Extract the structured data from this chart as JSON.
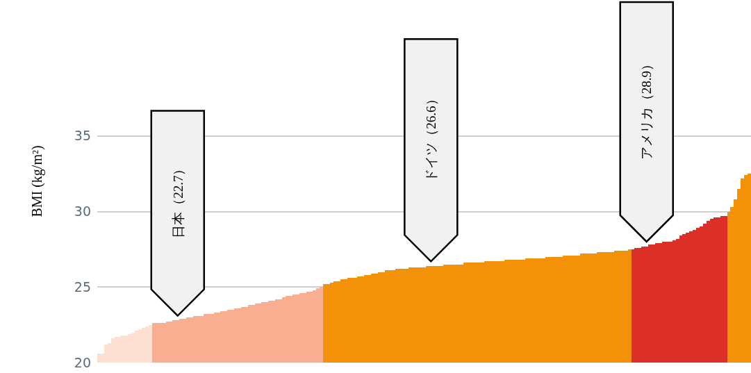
{
  "chart_data": {
    "type": "bar",
    "ylabel": "BMI (kg/m²)",
    "categories": [
      null,
      null,
      null,
      null,
      null,
      null,
      null,
      null,
      null,
      null,
      null,
      null,
      null,
      null,
      null,
      null,
      null,
      null,
      null,
      null,
      null,
      null,
      null,
      null,
      null,
      null,
      null,
      null,
      null,
      null,
      null,
      null,
      null,
      null,
      null,
      null,
      null,
      null,
      null,
      null,
      null,
      null,
      null,
      null,
      null,
      null,
      null,
      null,
      null,
      null,
      null,
      null,
      null,
      null,
      null,
      null,
      null,
      null,
      null,
      null,
      null,
      null,
      null,
      null,
      null,
      null,
      null,
      null,
      null,
      null,
      null,
      null,
      null,
      null,
      null,
      null,
      null,
      null,
      null,
      null,
      null,
      null,
      null,
      null,
      null,
      null,
      null,
      null,
      null,
      null,
      null,
      null,
      null,
      null,
      null,
      null,
      null,
      null,
      null,
      null,
      null,
      null,
      null,
      null,
      null,
      null,
      null,
      null,
      null,
      null,
      null,
      null,
      null,
      null,
      null,
      null,
      null,
      null,
      null,
      null,
      null,
      null,
      null,
      null,
      null,
      null,
      null,
      null,
      null,
      null,
      null,
      null,
      null,
      null,
      null,
      null,
      null,
      null,
      null,
      null,
      null,
      null,
      null,
      null,
      null,
      null,
      null,
      null,
      null,
      null,
      null,
      null,
      null,
      null,
      null,
      null,
      null,
      null,
      null,
      null,
      null,
      null,
      null,
      null,
      null,
      null,
      null,
      null,
      null,
      null,
      null,
      null,
      null,
      null,
      null,
      null,
      null,
      null,
      null,
      null,
      null,
      null,
      null,
      null,
      null,
      null,
      null,
      null,
      null,
      null,
      null
    ],
    "values": [
      20.6,
      20.6,
      21.2,
      21.3,
      21.6,
      21.7,
      21.7,
      21.8,
      21.8,
      21.9,
      22.0,
      22.1,
      22.2,
      22.3,
      22.4,
      22.5,
      22.6,
      22.6,
      22.6,
      22.6,
      22.7,
      22.7,
      22.8,
      22.8,
      22.9,
      22.9,
      23.0,
      23.0,
      23.1,
      23.1,
      23.1,
      23.2,
      23.2,
      23.2,
      23.3,
      23.3,
      23.4,
      23.4,
      23.5,
      23.5,
      23.6,
      23.6,
      23.7,
      23.7,
      23.8,
      23.8,
      23.9,
      23.9,
      24.0,
      24.0,
      24.1,
      24.1,
      24.2,
      24.2,
      24.3,
      24.4,
      24.4,
      24.5,
      24.5,
      24.6,
      24.6,
      24.7,
      24.7,
      24.8,
      24.9,
      25.0,
      25.2,
      25.2,
      25.3,
      25.4,
      25.4,
      25.5,
      25.5,
      25.6,
      25.6,
      25.6,
      25.7,
      25.7,
      25.8,
      25.8,
      25.9,
      25.9,
      26.0,
      26.0,
      26.1,
      26.1,
      26.1,
      26.2,
      26.2,
      26.2,
      26.2,
      26.3,
      26.3,
      26.3,
      26.3,
      26.3,
      26.4,
      26.4,
      26.4,
      26.4,
      26.4,
      26.5,
      26.5,
      26.5,
      26.5,
      26.5,
      26.5,
      26.6,
      26.6,
      26.6,
      26.6,
      26.6,
      26.6,
      26.7,
      26.7,
      26.7,
      26.7,
      26.7,
      26.7,
      26.8,
      26.8,
      26.8,
      26.8,
      26.8,
      26.8,
      26.9,
      26.9,
      26.9,
      26.9,
      26.9,
      26.9,
      27.0,
      27.0,
      27.0,
      27.0,
      27.0,
      27.1,
      27.1,
      27.1,
      27.1,
      27.1,
      27.2,
      27.2,
      27.2,
      27.2,
      27.2,
      27.3,
      27.3,
      27.3,
      27.3,
      27.3,
      27.4,
      27.4,
      27.4,
      27.4,
      27.5,
      27.5,
      27.6,
      27.6,
      27.7,
      27.7,
      27.8,
      27.8,
      27.9,
      27.9,
      28.0,
      28.0,
      28.0,
      28.1,
      28.2,
      28.4,
      28.5,
      28.6,
      28.7,
      28.8,
      28.9,
      29.0,
      29.2,
      29.4,
      29.5,
      29.6,
      29.6,
      29.7,
      29.7,
      30.0,
      30.3,
      30.8,
      31.5,
      32.2,
      32.4,
      32.5
    ],
    "colors": [
      "#fde0d2",
      "#fde0d2",
      "#fde0d2",
      "#fde0d2",
      "#fde0d2",
      "#fde0d2",
      "#fde0d2",
      "#fde0d2",
      "#fde0d2",
      "#fde0d2",
      "#fde0d2",
      "#fde0d2",
      "#fde0d2",
      "#fde0d2",
      "#fde0d2",
      "#fde0d2",
      "#f9ae92",
      "#f9ae92",
      "#f9ae92",
      "#f9ae92",
      "#f9ae92",
      "#f9ae92",
      "#f9ae92",
      "#f9ae92",
      "#f9ae92",
      "#f9ae92",
      "#f9ae92",
      "#f9ae92",
      "#f9ae92",
      "#f9ae92",
      "#f9ae92",
      "#f9ae92",
      "#f9ae92",
      "#f9ae92",
      "#f9ae92",
      "#f9ae92",
      "#f9ae92",
      "#f9ae92",
      "#f9ae92",
      "#f9ae92",
      "#f9ae92",
      "#f9ae92",
      "#f9ae92",
      "#f9ae92",
      "#f9ae92",
      "#f9ae92",
      "#f9ae92",
      "#f9ae92",
      "#f9ae92",
      "#f9ae92",
      "#f9ae92",
      "#f9ae92",
      "#f9ae92",
      "#f9ae92",
      "#f9ae92",
      "#f9ae92",
      "#f9ae92",
      "#f9ae92",
      "#f9ae92",
      "#f9ae92",
      "#f9ae92",
      "#f9ae92",
      "#f9ae92",
      "#f9ae92",
      "#f9ae92",
      "#f9ae92",
      "#f39208",
      "#f39208",
      "#f39208",
      "#f39208",
      "#f39208",
      "#f39208",
      "#f39208",
      "#f39208",
      "#f39208",
      "#f39208",
      "#f39208",
      "#f39208",
      "#f39208",
      "#f39208",
      "#f39208",
      "#f39208",
      "#f39208",
      "#f39208",
      "#f39208",
      "#f39208",
      "#f39208",
      "#f39208",
      "#f39208",
      "#f39208",
      "#f39208",
      "#f39208",
      "#f39208",
      "#f39208",
      "#f39208",
      "#f39208",
      "#f39208",
      "#f39208",
      "#f39208",
      "#f39208",
      "#f39208",
      "#f39208",
      "#f39208",
      "#f39208",
      "#f39208",
      "#f39208",
      "#f39208",
      "#f39208",
      "#f39208",
      "#f39208",
      "#f39208",
      "#f39208",
      "#f39208",
      "#f39208",
      "#f39208",
      "#f39208",
      "#f39208",
      "#f39208",
      "#f39208",
      "#f39208",
      "#f39208",
      "#f39208",
      "#f39208",
      "#f39208",
      "#f39208",
      "#f39208",
      "#f39208",
      "#f39208",
      "#f39208",
      "#f39208",
      "#f39208",
      "#f39208",
      "#f39208",
      "#f39208",
      "#f39208",
      "#f39208",
      "#f39208",
      "#f39208",
      "#f39208",
      "#f39208",
      "#f39208",
      "#f39208",
      "#f39208",
      "#f39208",
      "#f39208",
      "#f39208",
      "#f39208",
      "#f39208",
      "#f39208",
      "#f39208",
      "#f39208",
      "#f39208",
      "#f39208",
      "#f39208",
      "#f39208",
      "#f39208",
      "#dc2f27",
      "#dc2f27",
      "#dc2f27",
      "#dc2f27",
      "#dc2f27",
      "#dc2f27",
      "#dc2f27",
      "#dc2f27",
      "#dc2f27",
      "#dc2f27",
      "#dc2f27",
      "#dc2f27",
      "#dc2f27",
      "#dc2f27",
      "#dc2f27",
      "#dc2f27",
      "#dc2f27",
      "#dc2f27",
      "#dc2f27",
      "#dc2f27",
      "#dc2f27",
      "#dc2f27",
      "#dc2f27",
      "#dc2f27",
      "#dc2f27",
      "#dc2f27",
      "#dc2f27",
      "#dc2f27",
      "#f39208",
      "#f39208",
      "#f39208",
      "#f39208",
      "#f39208",
      "#f39208",
      "#f39208"
    ],
    "annotations": [
      "日本（22.7）",
      "ドイツ（26.6）",
      "アメリカ（28.9）"
    ],
    "ylim": [
      20,
      44
    ],
    "yticks": [
      20,
      25,
      30,
      35
    ],
    "grid": "y"
  }
}
